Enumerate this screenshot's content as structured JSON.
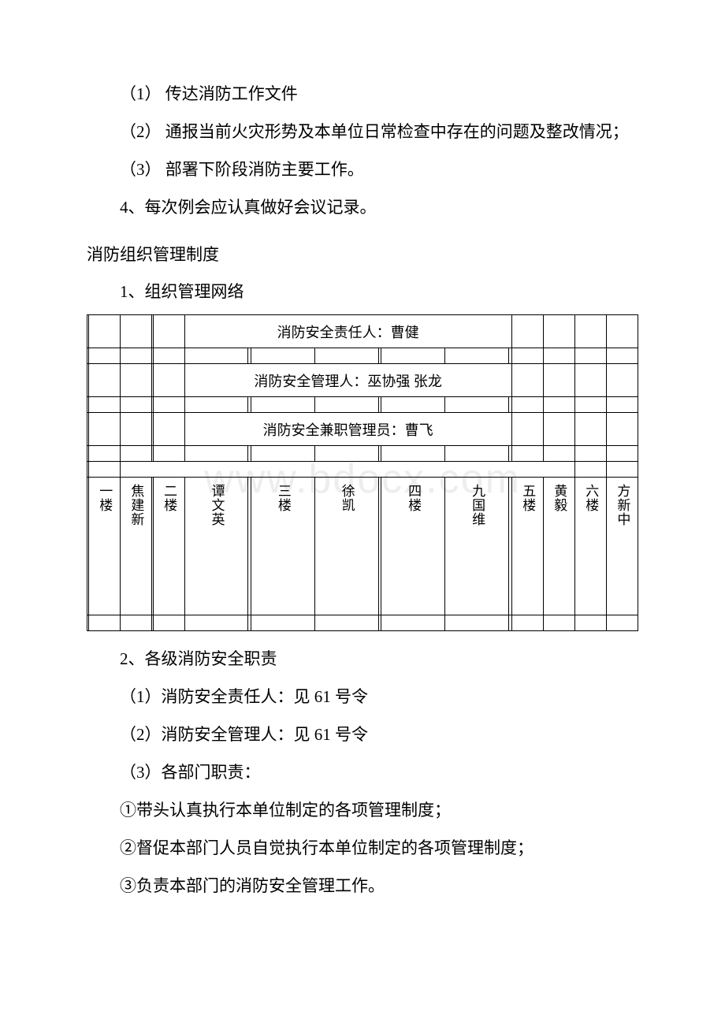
{
  "paragraphs": {
    "p1": "（1） 传达消防工作文件",
    "p2": "（2） 通报当前火灾形势及本单位日常检查中存在的问题及整改情况；",
    "p3": "（3） 部署下阶段消防主要工作。",
    "p4": "4、每次例会应认真做好会议记录。"
  },
  "section1_title": "消防组织管理制度",
  "section1_sub1": "1、组织管理网络",
  "table": {
    "row1": "消防安全责任人：曹健",
    "row2": "消防安全管理人：巫协强 张龙",
    "row3": "消防安全兼职管理员：曹飞",
    "floors": {
      "f1_label": "一楼",
      "f1_name": "焦建新",
      "f2_label": "二楼",
      "f2_name": "谭文英",
      "f3_label": "三楼",
      "f3_name": "徐凯",
      "f4_label": "四楼",
      "f4_name": "九国维",
      "f5_label": "五楼",
      "f5_name": "黄毅",
      "f6_label": "六楼",
      "f6_name": "方新中"
    }
  },
  "section2": {
    "s1": "2、各级消防安全职责",
    "s2": "（1）消防安全责任人：见 61 号令",
    "s3": "（2）消防安全管理人：见 61 号令",
    "s4": "（3）各部门职责：",
    "s5": "①带头认真执行本单位制定的各项管理制度；",
    "s6": "②督促本部门人员自觉执行本单位制定的各项管理制度；",
    "s7": "③负责本部门的消防安全管理工作。"
  },
  "watermark": "www.bdocx.com"
}
